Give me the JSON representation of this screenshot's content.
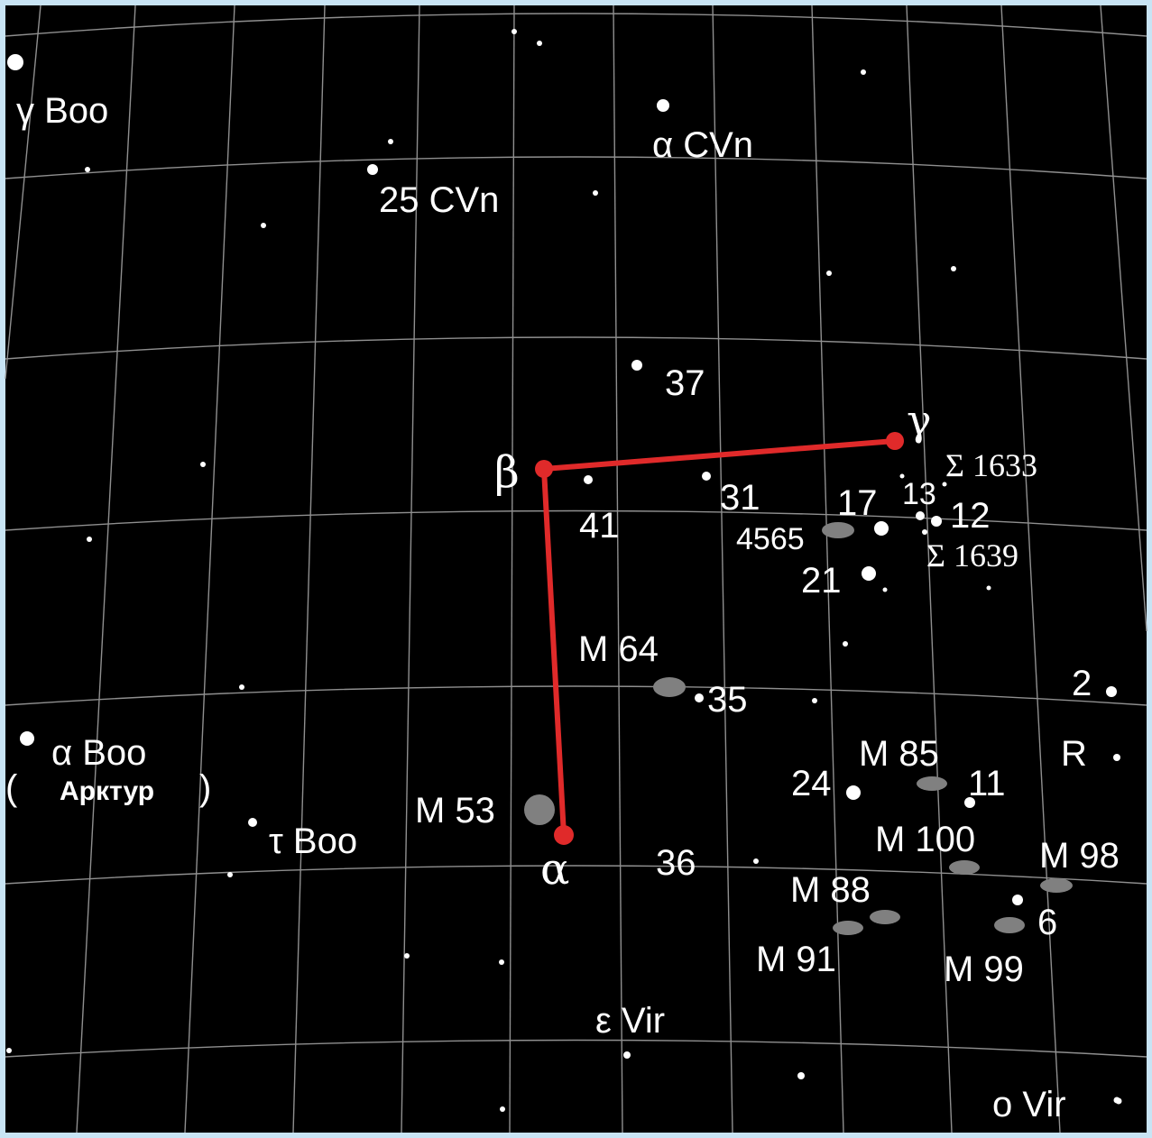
{
  "colors": {
    "sky": "#000000",
    "frame": "#c8e4f4",
    "grid": "#8f8f8f",
    "asterism": "#e02a2a",
    "star": "#ffffff",
    "galaxy": "#808080"
  },
  "labels": {
    "gamma_boo": "γ Boo",
    "alpha_cvn": "α CVn",
    "cvn_25": "25 CVn",
    "s37": "37",
    "beta": "β",
    "gamma": "γ",
    "sigma_1633": "Σ 1633",
    "s41": "41",
    "s31": "31",
    "s17": "17",
    "s13": "13",
    "s12": "12",
    "ngc4565": "4565",
    "sigma_1639": "Σ 1639",
    "s21": "21",
    "m64": "M 64",
    "s35": "35",
    "s2": "2",
    "alpha_boo": "α Boo",
    "arcturus_open": "(",
    "arcturus": "Арктур",
    "arcturus_close": ")",
    "m85": "M 85",
    "r": "R",
    "s24": "24",
    "s11": "11",
    "m53": "M 53",
    "tau_boo": "τ Boo",
    "alpha": "α",
    "s36": "36",
    "m100": "M 100",
    "m98": "M 98",
    "m88": "M 88",
    "s6": "6",
    "m91": "M 91",
    "m99": "M 99",
    "eps_vir": "ε Vir",
    "o_vir": "ο Vir"
  }
}
